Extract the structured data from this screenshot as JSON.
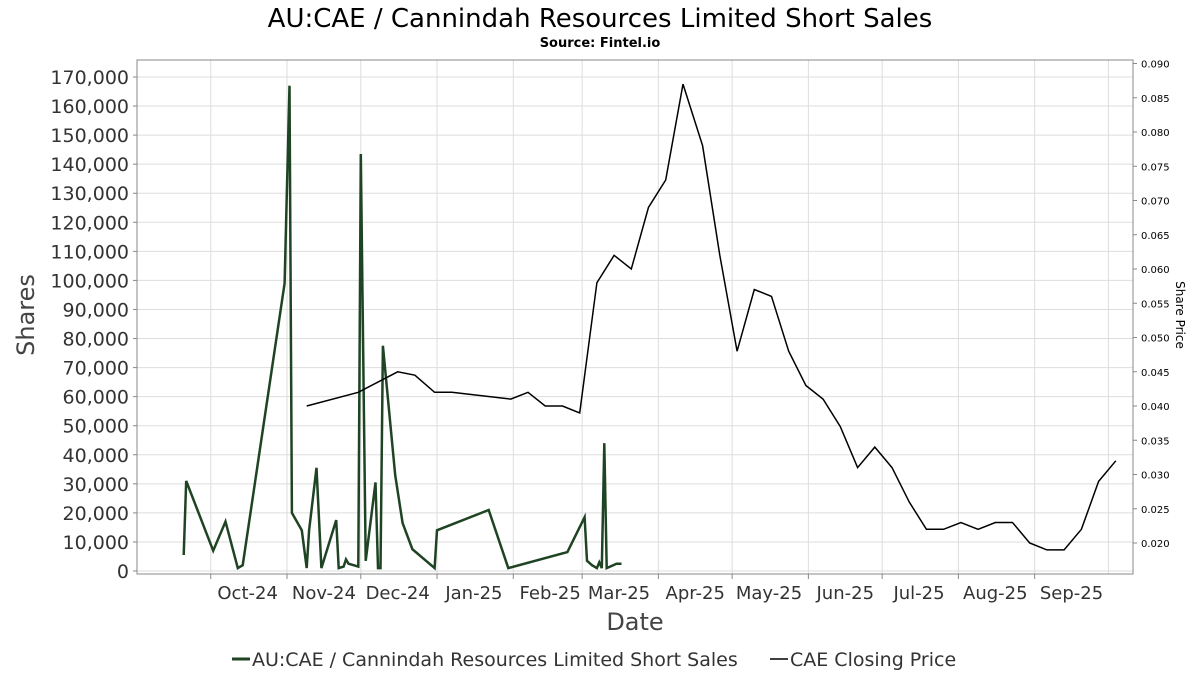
{
  "chart_data": {
    "type": "line",
    "title": "AU:CAE / Cannindah Resources Limited Short Sales",
    "subtitle": "Source: Fintel.io",
    "xlabel": "Date",
    "ylabel": "Shares",
    "y2label": "Share Price",
    "ylim": [
      0,
      170000
    ],
    "y2lim": [
      0.016,
      0.09
    ],
    "grid": true,
    "legend_position": "bottom",
    "x_ticks": [
      "Oct-24",
      "Nov-24",
      "Dec-24",
      "Jan-25",
      "Feb-25",
      "Mar-25",
      "Apr-25",
      "May-25",
      "Jun-25",
      "Jul-25",
      "Aug-25",
      "Sep-25"
    ],
    "y_ticks": [
      "0",
      "10,000",
      "20,000",
      "30,000",
      "40,000",
      "50,000",
      "60,000",
      "70,000",
      "80,000",
      "90,000",
      "100,000",
      "110,000",
      "120,000",
      "130,000",
      "140,000",
      "150,000",
      "160,000",
      "170,000"
    ],
    "y2_ticks": [
      "0.020",
      "0.025",
      "0.030",
      "0.035",
      "0.040",
      "0.045",
      "0.050",
      "0.055",
      "0.060",
      "0.065",
      "0.070",
      "0.075",
      "0.080",
      "0.085",
      "0.090"
    ],
    "series": [
      {
        "name": "AU:CAE / Cannindah Resources Limited Short Sales",
        "axis": "left",
        "color": "#1f4424",
        "points": [
          [
            "2024-09-20",
            5500
          ],
          [
            "2024-09-21",
            31000
          ],
          [
            "2024-10-02",
            7000
          ],
          [
            "2024-10-07",
            17000
          ],
          [
            "2024-10-12",
            1000
          ],
          [
            "2024-10-14",
            2000
          ],
          [
            "2024-10-31",
            99000
          ],
          [
            "2024-11-02",
            167000
          ],
          [
            "2024-11-03",
            20000
          ],
          [
            "2024-11-07",
            14000
          ],
          [
            "2024-11-09",
            1000
          ],
          [
            "2024-11-10",
            14000
          ],
          [
            "2024-11-13",
            35500
          ],
          [
            "2024-11-15",
            1000
          ],
          [
            "2024-11-21",
            17500
          ],
          [
            "2024-11-22",
            1000
          ],
          [
            "2024-11-24",
            1500
          ],
          [
            "2024-11-25",
            4000
          ],
          [
            "2024-11-26",
            2500
          ],
          [
            "2024-11-30",
            1500
          ],
          [
            "2024-12-01",
            143500
          ],
          [
            "2024-12-03",
            3500
          ],
          [
            "2024-12-07",
            30500
          ],
          [
            "2024-12-08",
            1000
          ],
          [
            "2024-12-09",
            1000
          ],
          [
            "2024-12-10",
            77500
          ],
          [
            "2024-12-15",
            33000
          ],
          [
            "2024-12-18",
            16500
          ],
          [
            "2024-12-22",
            7500
          ],
          [
            "2024-12-31",
            1000
          ],
          [
            "2025-01-01",
            14000
          ],
          [
            "2025-01-22",
            21000
          ],
          [
            "2025-01-30",
            1000
          ],
          [
            "2025-02-23",
            6500
          ],
          [
            "2025-03-02",
            18500
          ],
          [
            "2025-03-03",
            3500
          ],
          [
            "2025-03-05",
            2000
          ],
          [
            "2025-03-07",
            1000
          ],
          [
            "2025-03-08",
            3000
          ],
          [
            "2025-03-09",
            1000
          ],
          [
            "2025-03-10",
            44000
          ],
          [
            "2025-03-11",
            1000
          ],
          [
            "2025-03-15",
            2500
          ],
          [
            "2025-03-17",
            2500
          ]
        ]
      },
      {
        "name": "CAE Closing Price",
        "axis": "right",
        "color": "#000000",
        "points": [
          [
            "2024-11-09",
            0.04
          ],
          [
            "2024-11-30",
            0.042
          ],
          [
            "2024-12-16",
            0.045
          ],
          [
            "2024-12-23",
            0.0445
          ],
          [
            "2024-12-31",
            0.042
          ],
          [
            "2025-01-07",
            0.042
          ],
          [
            "2025-01-31",
            0.041
          ],
          [
            "2025-02-07",
            0.042
          ],
          [
            "2025-02-14",
            0.04
          ],
          [
            "2025-02-21",
            0.04
          ],
          [
            "2025-02-28",
            0.039
          ],
          [
            "2025-03-07",
            0.058
          ],
          [
            "2025-03-14",
            0.062
          ],
          [
            "2025-03-21",
            0.06
          ],
          [
            "2025-03-28",
            0.069
          ],
          [
            "2025-04-04",
            0.073
          ],
          [
            "2025-04-11",
            0.087
          ],
          [
            "2025-04-19",
            0.078
          ],
          [
            "2025-04-26",
            0.062
          ],
          [
            "2025-05-03",
            0.048
          ],
          [
            "2025-05-10",
            0.057
          ],
          [
            "2025-05-17",
            0.056
          ],
          [
            "2025-05-24",
            0.048
          ],
          [
            "2025-05-31",
            0.043
          ],
          [
            "2025-06-07",
            0.041
          ],
          [
            "2025-06-14",
            0.037
          ],
          [
            "2025-06-21",
            0.031
          ],
          [
            "2025-06-28",
            0.034
          ],
          [
            "2025-07-05",
            0.031
          ],
          [
            "2025-07-12",
            0.026
          ],
          [
            "2025-07-19",
            0.022
          ],
          [
            "2025-07-26",
            0.022
          ],
          [
            "2025-08-02",
            0.023
          ],
          [
            "2025-08-09",
            0.022
          ],
          [
            "2025-08-16",
            0.023
          ],
          [
            "2025-08-23",
            0.023
          ],
          [
            "2025-08-30",
            0.02
          ],
          [
            "2025-09-06",
            0.019
          ],
          [
            "2025-09-13",
            0.019
          ],
          [
            "2025-09-20",
            0.022
          ],
          [
            "2025-09-27",
            0.029
          ],
          [
            "2025-10-04",
            0.032
          ]
        ]
      }
    ]
  }
}
